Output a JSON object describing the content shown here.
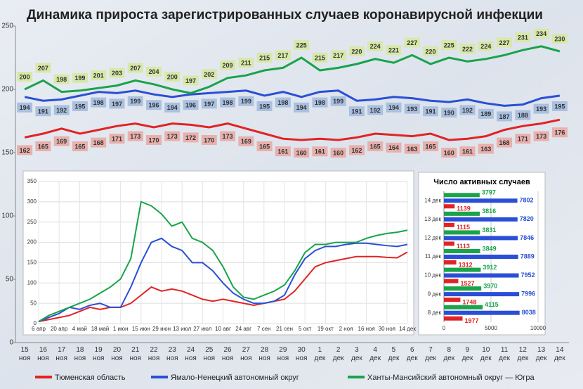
{
  "chart_data": [
    {
      "type": "line",
      "title": "Динамика прироста зарегистрированных случаев коронавирусной инфекции",
      "categories": [
        "15 ноя",
        "16 ноя",
        "17 ноя",
        "18 ноя",
        "19 ноя",
        "20 ноя",
        "21 ноя",
        "22 ноя",
        "23 ноя",
        "24 ноя",
        "25 ноя",
        "26 ноя",
        "27 ноя",
        "28 ноя",
        "29 ноя",
        "30 ноя",
        "1 дек",
        "2 дек",
        "3 дек",
        "4 дек",
        "5 дек",
        "6 дек",
        "7 дек",
        "8 дек",
        "9 дек",
        "10 дек",
        "11 дек",
        "12 дек",
        "13 дек",
        "14 дек"
      ],
      "series": [
        {
          "name": "Тюменская область",
          "color": "#e02424",
          "label_fill": "#e8b0ac",
          "values": [
            162,
            165,
            169,
            165,
            168,
            171,
            173,
            170,
            173,
            172,
            170,
            173,
            169,
            165,
            161,
            160,
            161,
            160,
            162,
            165,
            164,
            163,
            165,
            160,
            161,
            163,
            168,
            171,
            173,
            176
          ]
        },
        {
          "name": "Ямало-Ненецкий автономный округ",
          "color": "#2a4fd6",
          "label_fill": "#a9c0e0",
          "values": [
            194,
            191,
            192,
            195,
            198,
            197,
            199,
            196,
            194,
            196,
            197,
            198,
            199,
            195,
            198,
            194,
            198,
            199,
            191,
            192,
            194,
            193,
            191,
            190,
            192,
            189,
            187,
            188,
            193,
            195
          ]
        },
        {
          "name": "Ханты-Мансийский автономный округ — Югра",
          "color": "#1aa34a",
          "label_fill": "#d8e8a8",
          "values": [
            200,
            207,
            198,
            199,
            201,
            203,
            207,
            204,
            200,
            197,
            202,
            209,
            211,
            215,
            217,
            225,
            215,
            217,
            220,
            224,
            221,
            227,
            220,
            225,
            222,
            224,
            227,
            231,
            234,
            230
          ]
        }
      ],
      "ylim": [
        0,
        250
      ],
      "yticks": [
        0,
        50,
        100,
        150,
        200,
        250
      ],
      "grid": false
    },
    {
      "type": "line",
      "categories": [
        "6 апр",
        null,
        "20 апр",
        null,
        "4 май",
        null,
        "18 май",
        null,
        "1 июн",
        null,
        "15 июн",
        null,
        "29 июн",
        null,
        "13 июл",
        null,
        "27 июл",
        null,
        "10 авг",
        null,
        "24 авг",
        null,
        "7 сен",
        null,
        "21 сен",
        null,
        "5 окт",
        null,
        "19 окт",
        null,
        "2 ноя",
        null,
        "16 ноя",
        null,
        "30 ноя",
        null,
        "14 дек"
      ],
      "series": [
        {
          "color": "#e02424",
          "values": [
            5,
            10,
            15,
            20,
            30,
            40,
            35,
            40,
            40,
            50,
            70,
            90,
            80,
            85,
            80,
            70,
            60,
            55,
            60,
            55,
            50,
            45,
            50,
            55,
            60,
            80,
            110,
            140,
            150,
            155,
            160,
            165,
            165,
            165,
            163,
            162,
            176
          ]
        },
        {
          "color": "#2a4fd6",
          "values": [
            5,
            15,
            25,
            40,
            35,
            45,
            50,
            40,
            40,
            90,
            150,
            200,
            210,
            190,
            180,
            150,
            150,
            130,
            100,
            75,
            60,
            50,
            50,
            55,
            70,
            120,
            160,
            180,
            190,
            190,
            195,
            198,
            198,
            195,
            192,
            190,
            195
          ]
        },
        {
          "color": "#1aa34a",
          "values": [
            5,
            20,
            30,
            40,
            50,
            60,
            75,
            90,
            110,
            160,
            300,
            290,
            270,
            240,
            250,
            210,
            200,
            180,
            140,
            90,
            65,
            60,
            70,
            80,
            95,
            130,
            175,
            195,
            195,
            200,
            200,
            200,
            210,
            217,
            222,
            225,
            230
          ]
        }
      ],
      "ylim": [
        0,
        350
      ],
      "yticks": [
        0,
        50,
        100,
        150,
        200,
        250,
        300,
        350
      ],
      "grid": true
    },
    {
      "type": "bar",
      "orientation": "horizontal",
      "title": "Число активных случаев",
      "categories": [
        "14 дек",
        "13 дек",
        "12 дек",
        "11 дек",
        "10 дек",
        "9 дек",
        "8 дек"
      ],
      "series": [
        {
          "color": "#1aa34a",
          "values": [
            3797,
            3816,
            3831,
            3849,
            3912,
            3970,
            4115
          ]
        },
        {
          "color": "#2a4fd6",
          "values": [
            7802,
            7820,
            7846,
            7889,
            7952,
            7996,
            8038
          ]
        },
        {
          "color": "#e02424",
          "values": [
            1139,
            1115,
            1113,
            1312,
            1527,
            1748,
            1977
          ]
        }
      ],
      "xlim": [
        0,
        10000
      ],
      "xticks": [
        0,
        5000,
        10000
      ],
      "grid": true
    }
  ]
}
